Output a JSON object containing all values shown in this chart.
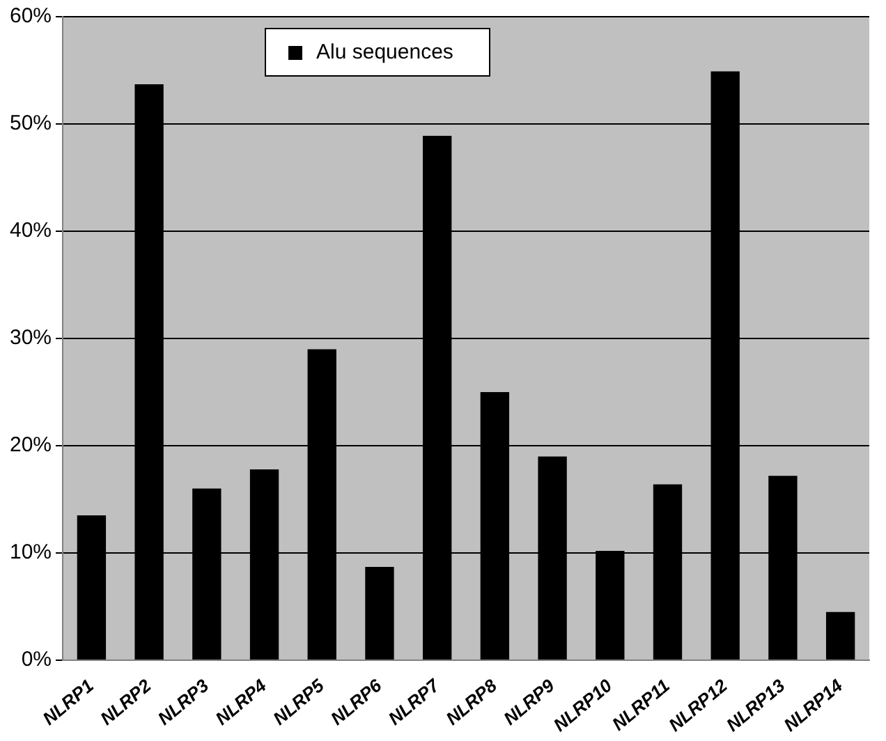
{
  "chart_data": {
    "type": "bar",
    "categories": [
      "NLRP1",
      "NLRP2",
      "NLRP3",
      "NLRP4",
      "NLRP5",
      "NLRP6",
      "NLRP7",
      "NLRP8",
      "NLRP9",
      "NLRP10",
      "NLRP11",
      "NLRP12",
      "NLRP13",
      "NLRP14"
    ],
    "series": [
      {
        "name": "Alu sequences",
        "color": "#000000",
        "values": [
          13.5,
          53.7,
          16,
          17.8,
          29,
          8.7,
          48.9,
          25,
          19,
          10.2,
          16.4,
          54.9,
          17.2,
          4.5
        ]
      }
    ],
    "ylim": [
      0,
      60
    ],
    "yticks": [
      {
        "value": 0,
        "label": "0%"
      },
      {
        "value": 10,
        "label": "10%"
      },
      {
        "value": 20,
        "label": "20%"
      },
      {
        "value": 30,
        "label": "30%"
      },
      {
        "value": 40,
        "label": "40%"
      },
      {
        "value": 50,
        "label": "50%"
      },
      {
        "value": 60,
        "label": "60%"
      }
    ],
    "grid": "y",
    "legend": "top"
  }
}
